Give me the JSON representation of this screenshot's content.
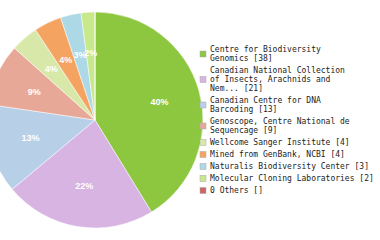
{
  "chart_data": {
    "type": "pie",
    "categories": [
      "Centre for Biodiversity\nGenomics [38]",
      "Canadian National Collection\nof Insects, Arachnids and\nNem... [21]",
      "Canadian Centre for DNA\nBarcoding [13]",
      "Genoscope, Centre National de\nSequencage [9]",
      "Wellcome Sanger Institute [4]",
      "Mined from GenBank, NCBI [4]",
      "Naturalis Biodiversity Center [3]",
      "Molecular Cloning Laboratories [2]",
      "0 Others []"
    ],
    "values": [
      40,
      22,
      13,
      9,
      4,
      4,
      3,
      2,
      0.001
    ],
    "value_labels": [
      "40%",
      "22%",
      "13%",
      "9%",
      "4%",
      "4%",
      "3%",
      "2%",
      null
    ],
    "colors": [
      "#8dc63f",
      "#d8b4e2",
      "#b8cfe8",
      "#e8a898",
      "#d8e8a8",
      "#f4a460",
      "#add8e6",
      "#c8e88c",
      "#cc6666"
    ],
    "data_labels": true,
    "legend": "right"
  }
}
